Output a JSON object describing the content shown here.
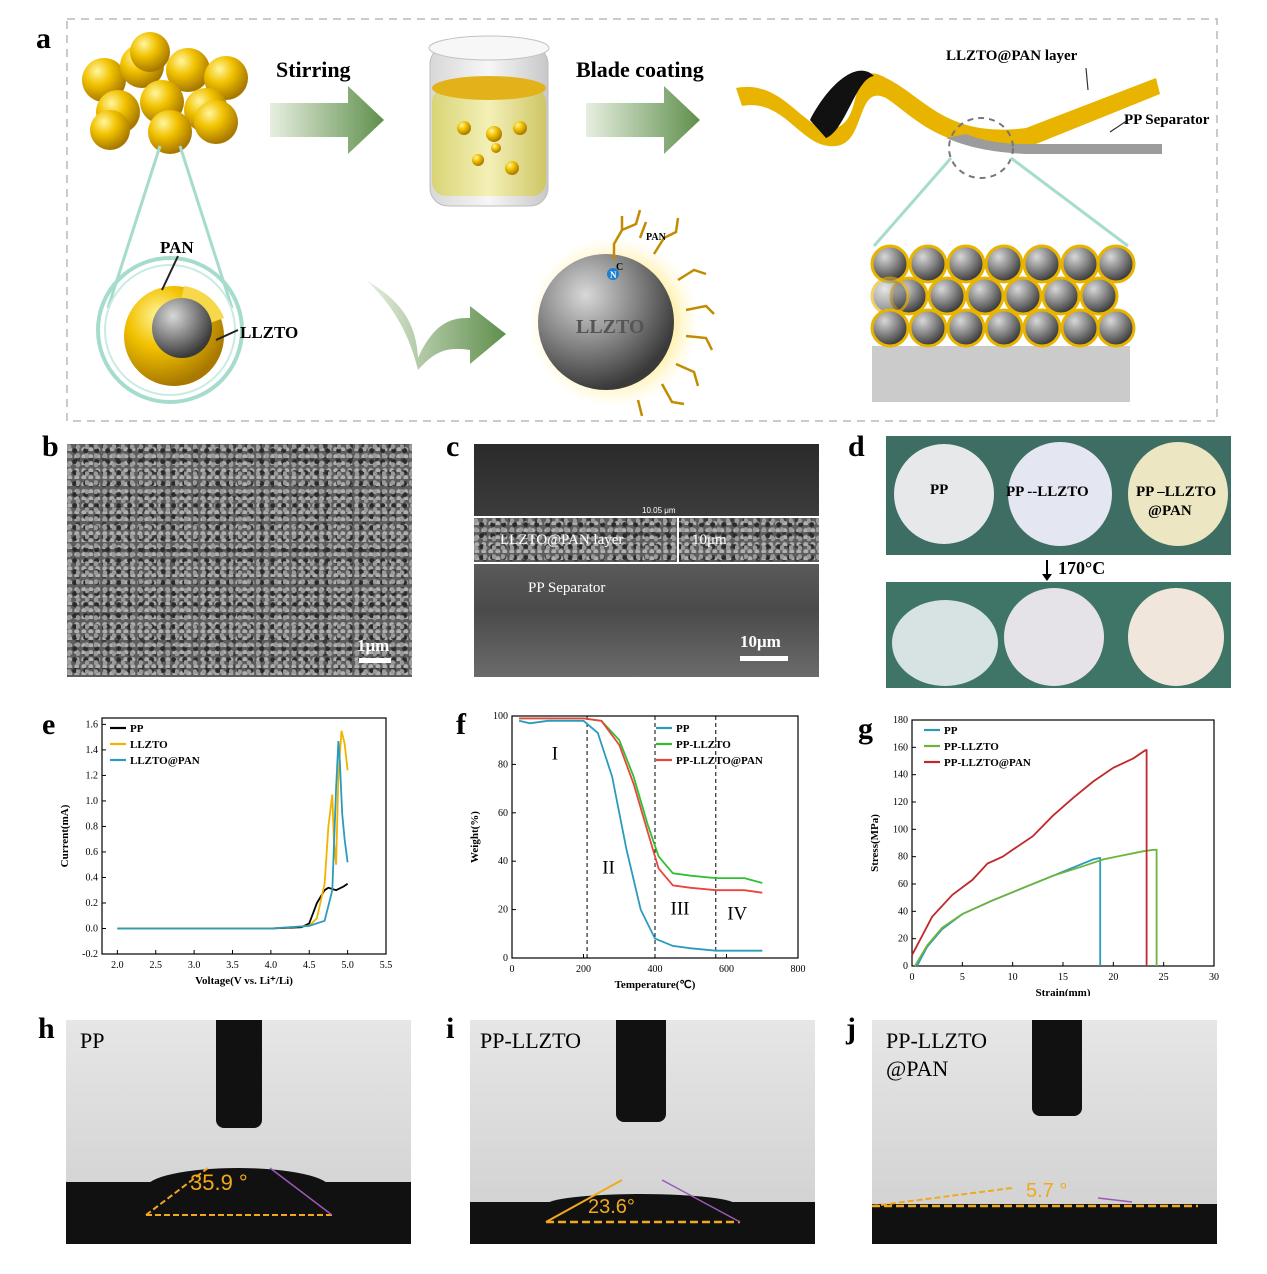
{
  "panel_labels": {
    "a": "a",
    "b": "b",
    "c": "c",
    "d": "d",
    "e": "e",
    "f": "f",
    "g": "g",
    "h": "h",
    "i": "i",
    "j": "j"
  },
  "schematic": {
    "stirring": "Stirring",
    "blade_coating": "Blade coating",
    "llzto_pan_layer": "LLZTO@PAN layer",
    "pp_separator": "PP Separator",
    "pan": "PAN",
    "llzto": "LLZTO",
    "pan_small": "PAN",
    "core_label": "LLZTO",
    "atom_c": "C",
    "atom_n": "N",
    "colors": {
      "gold": "#e8b400",
      "arrow": "#6f9a5a",
      "core": "#7d7d7d",
      "teal_outline": "#a6dccd"
    }
  },
  "sem_b": {
    "scale_bar": "1μm"
  },
  "sem_c": {
    "layer_label": "LLZTO@PAN layer",
    "thickness": "10μm",
    "measure": "10.05 μm",
    "separator_label": "PP Separator",
    "scale_bar": "10μm"
  },
  "photo_d": {
    "pp": "PP",
    "pp_llzto": "PP --LLZTO",
    "pp_llzto_pan_line1": "PP –LLZTO",
    "pp_llzto_pan_line2": "@PAN",
    "temperature": "170°C"
  },
  "contact_angles": {
    "h": {
      "title": "PP",
      "angle": "35.9 °"
    },
    "i": {
      "title": "PP-LLZTO",
      "angle": "23.6°"
    },
    "j": {
      "title_line1": "PP-LLZTO",
      "title_line2": "@PAN",
      "angle": "5.7 °"
    }
  },
  "chart_data": [
    {
      "id": "e",
      "type": "line",
      "xlabel": "Voltage(V vs. Li⁺/Li)",
      "ylabel": "Current(mA)",
      "xlim": [
        1.8,
        5.5
      ],
      "ylim": [
        -0.2,
        1.65
      ],
      "xticks": [
        2.0,
        2.5,
        3.0,
        3.5,
        4.0,
        4.5,
        5.0,
        5.5
      ],
      "yticks": [
        -0.2,
        0.0,
        0.2,
        0.4,
        0.6,
        0.8,
        1.0,
        1.2,
        1.4,
        1.6
      ],
      "legend": "top-left",
      "series": [
        {
          "name": "PP",
          "color": "#000000",
          "x": [
            2.0,
            3.0,
            4.0,
            4.4,
            4.5,
            4.55,
            4.6,
            4.7,
            4.75,
            4.85,
            4.95,
            5.0
          ],
          "y": [
            0.0,
            0.0,
            0.0,
            0.01,
            0.04,
            0.12,
            0.2,
            0.3,
            0.32,
            0.3,
            0.33,
            0.35
          ]
        },
        {
          "name": "LLZTO",
          "color": "#f0b400",
          "x": [
            2.0,
            3.0,
            4.0,
            4.5,
            4.6,
            4.7,
            4.75,
            4.8,
            4.82,
            4.85,
            4.88,
            4.92,
            4.96,
            5.0
          ],
          "y": [
            0.0,
            0.0,
            0.0,
            0.02,
            0.08,
            0.35,
            0.8,
            1.05,
            0.7,
            0.5,
            1.2,
            1.55,
            1.45,
            1.24
          ]
        },
        {
          "name": "LLZTO@PAN",
          "color": "#2a9bbd",
          "x": [
            2.0,
            3.0,
            4.0,
            4.5,
            4.7,
            4.8,
            4.85,
            4.88,
            4.9,
            4.93,
            4.96,
            5.0
          ],
          "y": [
            0.0,
            0.0,
            0.0,
            0.02,
            0.06,
            0.3,
            1.1,
            1.47,
            1.3,
            0.9,
            0.7,
            0.52
          ]
        }
      ]
    },
    {
      "id": "f",
      "type": "line",
      "xlabel": "Temperature(℃)",
      "ylabel": "Weight(%)",
      "xlim": [
        0,
        800
      ],
      "ylim": [
        0,
        100
      ],
      "xticks": [
        0,
        200,
        400,
        600,
        800
      ],
      "yticks": [
        0,
        20,
        40,
        60,
        80,
        100
      ],
      "legend": "top-right",
      "region_labels": [
        "I",
        "II",
        "III",
        "IV"
      ],
      "region_boundaries": [
        210,
        400,
        570
      ],
      "series": [
        {
          "name": "PP",
          "color": "#2a9bbd",
          "x": [
            20,
            50,
            100,
            200,
            240,
            280,
            320,
            360,
            400,
            450,
            500,
            570,
            650,
            700
          ],
          "y": [
            98,
            97,
            98,
            98,
            93,
            75,
            45,
            20,
            8,
            5,
            4,
            3,
            3,
            3
          ]
        },
        {
          "name": "PP-LLZTO",
          "color": "#2fc02f",
          "x": [
            20,
            100,
            200,
            250,
            300,
            340,
            380,
            410,
            450,
            500,
            570,
            650,
            700
          ],
          "y": [
            99,
            99,
            99,
            98,
            90,
            75,
            55,
            42,
            35,
            34,
            33,
            33,
            31
          ]
        },
        {
          "name": "PP-LLZTO@PAN",
          "color": "#e8453c",
          "x": [
            20,
            100,
            200,
            250,
            300,
            340,
            380,
            410,
            450,
            500,
            570,
            650,
            700
          ],
          "y": [
            99,
            99,
            99,
            98,
            88,
            72,
            52,
            37,
            30,
            29,
            28,
            28,
            27
          ]
        }
      ]
    },
    {
      "id": "g",
      "type": "line",
      "xlabel": "Strain(mm)",
      "ylabel": "Stress(MPa)",
      "xlim": [
        0,
        30
      ],
      "ylim": [
        0,
        180
      ],
      "xticks": [
        0,
        5,
        10,
        15,
        20,
        25,
        30
      ],
      "yticks": [
        0,
        20,
        40,
        60,
        80,
        100,
        120,
        140,
        160,
        180
      ],
      "legend": "top-left",
      "series": [
        {
          "name": "PP",
          "color": "#2a9bbd",
          "x": [
            0.5,
            1.5,
            3,
            5,
            8,
            11,
            14,
            16,
            18,
            18.6,
            18.7,
            18.7
          ],
          "y": [
            0,
            14,
            27,
            38,
            48,
            57,
            66,
            72,
            78,
            79,
            79,
            0
          ]
        },
        {
          "name": "PP-LLZTO",
          "color": "#6db33f",
          "x": [
            0.3,
            1.5,
            3,
            5,
            8,
            11,
            14,
            17,
            19,
            21,
            23,
            24,
            24.3,
            24.3
          ],
          "y": [
            0,
            15,
            28,
            38,
            48,
            57,
            66,
            73,
            78,
            81,
            84,
            85,
            85,
            0
          ]
        },
        {
          "name": "PP-LLZTO@PAN",
          "color": "#c0282b",
          "x": [
            0,
            1,
            2,
            4,
            6,
            7.5,
            9,
            10,
            12,
            14,
            16,
            18,
            20,
            22,
            23.2,
            23.3,
            23.3
          ],
          "y": [
            8,
            22,
            36,
            52,
            63,
            75,
            80,
            85,
            95,
            110,
            123,
            135,
            145,
            152,
            158,
            158,
            0
          ]
        }
      ]
    }
  ]
}
